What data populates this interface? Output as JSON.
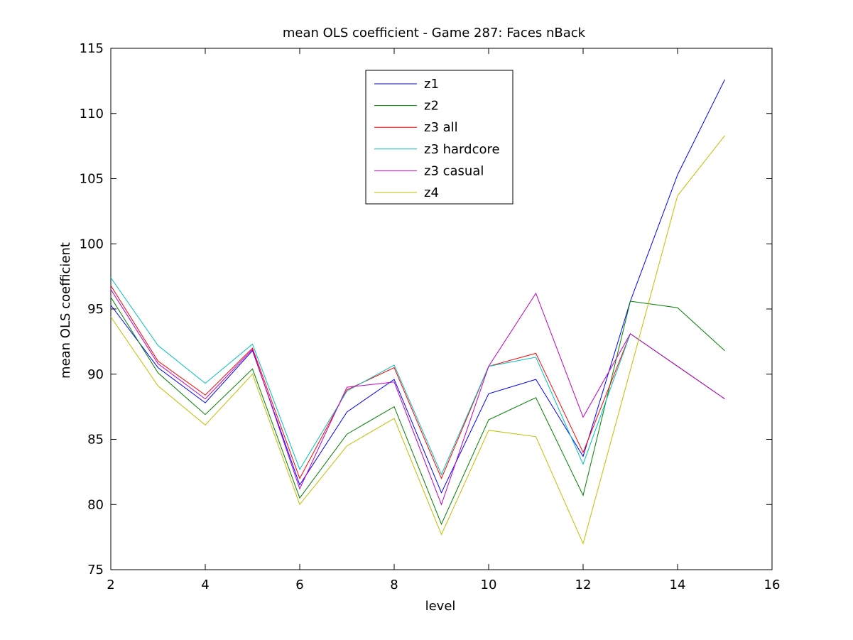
{
  "chart_data": {
    "type": "line",
    "title": "mean OLS coefficient - Game 287: Faces nBack",
    "xlabel": "level",
    "ylabel": "mean OLS coefficient",
    "xlim": [
      2,
      16
    ],
    "ylim": [
      75,
      115
    ],
    "xticks": [
      2,
      4,
      6,
      8,
      10,
      12,
      14,
      16
    ],
    "yticks": [
      75,
      80,
      85,
      90,
      95,
      100,
      105,
      110,
      115
    ],
    "grid": false,
    "legend_position": "top-center",
    "x": [
      2,
      3,
      4,
      5,
      6,
      7,
      8,
      9,
      10,
      11,
      12,
      13,
      14,
      15
    ],
    "series": [
      {
        "name": "z1",
        "color": "#0000ff",
        "values": [
          95.3,
          90.5,
          87.8,
          91.8,
          81.5,
          87.1,
          89.6,
          80.9,
          88.5,
          89.6,
          83.7,
          95.6,
          105.3,
          112.6
        ]
      },
      {
        "name": "z2",
        "color": "#008000",
        "values": [
          95.9,
          90.1,
          86.9,
          90.4,
          80.5,
          85.4,
          87.5,
          78.5,
          86.5,
          88.2,
          80.7,
          95.6,
          95.1,
          91.8
        ]
      },
      {
        "name": "z3 all",
        "color": "#ff0000",
        "values": [
          96.8,
          91.0,
          88.4,
          92.0,
          82.0,
          88.8,
          90.5,
          82.0,
          90.6,
          91.6,
          84.0,
          93.1,
          90.6,
          88.1
        ]
      },
      {
        "name": "z3 hardcore",
        "color": "#00bfbf",
        "values": [
          97.4,
          92.2,
          89.3,
          92.3,
          82.7,
          88.7,
          90.7,
          82.3,
          90.6,
          91.3,
          83.1,
          93.1,
          90.6,
          88.1
        ]
      },
      {
        "name": "z3 casual",
        "color": "#bf00bf",
        "values": [
          96.5,
          90.8,
          88.1,
          91.9,
          81.2,
          89.0,
          89.4,
          80.0,
          90.6,
          96.2,
          86.7,
          93.1,
          90.6,
          88.1
        ]
      },
      {
        "name": "z4",
        "color": "#bfbf00",
        "values": [
          94.4,
          89.1,
          86.1,
          90.0,
          80.0,
          84.5,
          86.6,
          77.7,
          85.7,
          85.2,
          77.0,
          90.3,
          103.7,
          108.3
        ]
      }
    ]
  }
}
